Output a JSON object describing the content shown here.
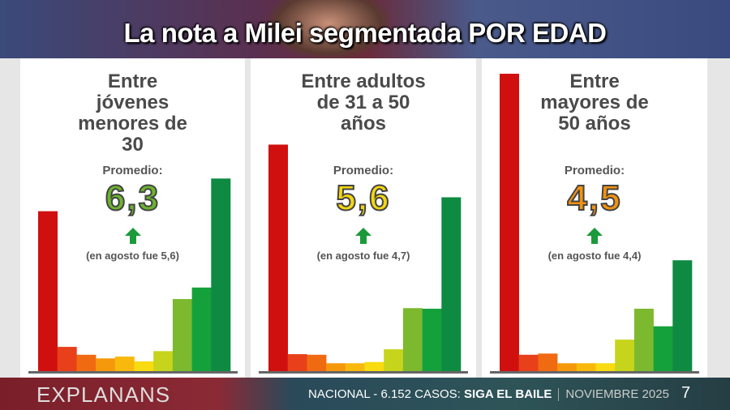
{
  "title": "La nota a Milei segmentada POR EDAD",
  "colors": [
    "#d0100f",
    "#e8401a",
    "#f06a12",
    "#f5980c",
    "#f8b90c",
    "#f8db10",
    "#c6d41c",
    "#7cb92e",
    "#14a13c",
    "#0e8a42"
  ],
  "chart_data": [
    {
      "type": "bar",
      "title": "Entre jóvenes menores de 30",
      "average_label": "Promedio:",
      "average": "6,3",
      "average_color": "#6cb52e",
      "trend": "up",
      "previous": "(en agosto fue 5,6)",
      "values": [
        26.4,
        4.0,
        2.7,
        2.1,
        2.4,
        1.6,
        3.3,
        11.9,
        13.8,
        31.8
      ],
      "unit": "%"
    },
    {
      "type": "bar",
      "title": "Entre adultos de 31 a 50 años",
      "average_label": "Promedio:",
      "average": "5,6",
      "average_color": "#f2d612",
      "trend": "up",
      "previous": "(en agosto fue 4,7)",
      "values": [
        37.4,
        2.8,
        2.7,
        1.3,
        1.3,
        1.5,
        3.6,
        10.4,
        10.3,
        28.7
      ],
      "unit": "%"
    },
    {
      "type": "bar",
      "title": "Entre mayores de 50 años",
      "average_label": "Promedio:",
      "average": "4,5",
      "average_color": "#f3920e",
      "trend": "up",
      "previous": "(en agosto fue 4,4)",
      "values": [
        49.1,
        2.7,
        2.9,
        1.3,
        1.3,
        1.3,
        5.2,
        10.3,
        7.4,
        18.3
      ],
      "unit": "%"
    }
  ],
  "footer": {
    "brand": "EXPLANANS",
    "text": "NACIONAL - 6.152 CASOS: ",
    "highlight": "SIGA EL BAILE",
    "date": "NOVIEMBRE 2025",
    "page": "7"
  }
}
